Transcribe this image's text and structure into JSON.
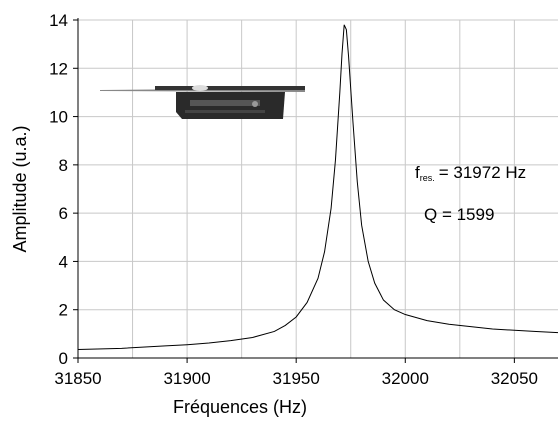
{
  "chart_data": {
    "type": "line",
    "xlabel": "Fréquences (Hz)",
    "ylabel": "Amplitude (u.a.)",
    "x": [
      31850,
      31870,
      31890,
      31900,
      31910,
      31920,
      31930,
      31940,
      31945,
      31950,
      31955,
      31960,
      31963,
      31966,
      31968,
      31970,
      31971,
      31972,
      31973,
      31974,
      31976,
      31978,
      31980,
      31983,
      31986,
      31990,
      31995,
      32000,
      32010,
      32020,
      32030,
      32040,
      32050,
      32060,
      32070
    ],
    "values": [
      0.35,
      0.4,
      0.5,
      0.55,
      0.62,
      0.72,
      0.85,
      1.1,
      1.35,
      1.7,
      2.3,
      3.3,
      4.4,
      6.2,
      8.2,
      11,
      12.6,
      13.8,
      13.6,
      12.5,
      9.8,
      7.3,
      5.5,
      4.0,
      3.1,
      2.4,
      2.0,
      1.8,
      1.55,
      1.4,
      1.3,
      1.2,
      1.15,
      1.1,
      1.05
    ],
    "color": "#000000",
    "xlim": [
      31850,
      32070
    ],
    "ylim": [
      0,
      14
    ],
    "xticks": [
      31850,
      31900,
      31950,
      32000,
      32050
    ],
    "xgrid_minor": [
      31875,
      31925,
      31975,
      32025
    ],
    "yticks": [
      0,
      2,
      4,
      6,
      8,
      10,
      12,
      14
    ],
    "grid": true,
    "annotations": {
      "frequency": {
        "symbol": "f",
        "subscript": "res.",
        "text": "= 31972 Hz"
      },
      "q_factor": "Q = 1599"
    }
  }
}
